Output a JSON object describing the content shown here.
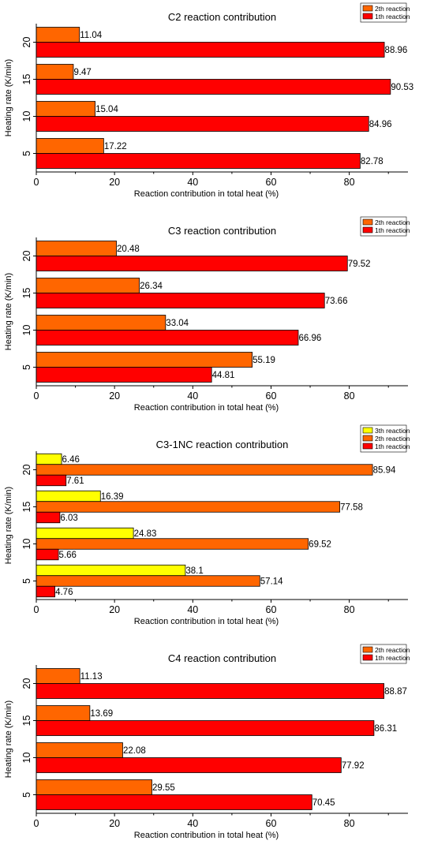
{
  "colors": {
    "1th reaction": "#ff0000",
    "2th reaction": "#ff6600",
    "3th reaction": "#ffff00",
    "bar_border": "#000000",
    "axis": "#000000"
  },
  "chart_data": [
    {
      "type": "bar",
      "orientation": "horizontal",
      "title": "C2 reaction contribution",
      "xlabel": "Reaction contribution in total heat (%)",
      "ylabel": "Heating rate (K/min)",
      "xlim": [
        0,
        95
      ],
      "xticks": [
        0,
        20,
        40,
        60,
        80
      ],
      "categories": [
        "5",
        "10",
        "15",
        "20"
      ],
      "legend_position": "top-right",
      "legend_order": [
        "2th reaction",
        "1th reaction"
      ],
      "series": [
        {
          "name": "1th reaction",
          "values": [
            82.78,
            84.96,
            90.53,
            88.96
          ]
        },
        {
          "name": "2th reaction",
          "values": [
            17.22,
            15.04,
            9.47,
            11.04
          ]
        }
      ]
    },
    {
      "type": "bar",
      "orientation": "horizontal",
      "title": "C3 reaction contribution",
      "xlabel": "Reaction contribution in total heat (%)",
      "ylabel": "Heating rate (K/min)",
      "xlim": [
        0,
        95
      ],
      "xticks": [
        0,
        20,
        40,
        60,
        80
      ],
      "categories": [
        "5",
        "10",
        "15",
        "20"
      ],
      "legend_position": "top-right",
      "legend_order": [
        "2th reaction",
        "1th reaction"
      ],
      "series": [
        {
          "name": "1th reaction",
          "values": [
            44.81,
            66.96,
            73.66,
            79.52
          ]
        },
        {
          "name": "2th reaction",
          "values": [
            55.19,
            33.04,
            26.34,
            20.48
          ]
        }
      ]
    },
    {
      "type": "bar",
      "orientation": "horizontal",
      "title": "C3-1NC reaction contribution",
      "xlabel": "Reaction contribution in total heat (%)",
      "ylabel": "Heating rate (K/min)",
      "xlim": [
        0,
        95
      ],
      "xticks": [
        0,
        20,
        40,
        60,
        80
      ],
      "categories": [
        "5",
        "10",
        "15",
        "20"
      ],
      "legend_position": "top-right",
      "legend_order": [
        "3th reaction",
        "2th reaction",
        "1th reaction"
      ],
      "series": [
        {
          "name": "1th reaction",
          "values": [
            4.76,
            5.66,
            6.03,
            7.61
          ]
        },
        {
          "name": "2th reaction",
          "values": [
            57.14,
            69.52,
            77.58,
            85.94
          ]
        },
        {
          "name": "3th reaction",
          "values": [
            38.1,
            24.83,
            16.39,
            6.46
          ]
        }
      ]
    },
    {
      "type": "bar",
      "orientation": "horizontal",
      "title": "C4 reaction contribution",
      "xlabel": "Reaction contribution in total heat (%)",
      "ylabel": "Heating rate (K/min)",
      "xlim": [
        0,
        95
      ],
      "xticks": [
        0,
        20,
        40,
        60,
        80
      ],
      "categories": [
        "5",
        "10",
        "15",
        "20"
      ],
      "legend_position": "top-right",
      "legend_order": [
        "2th reaction",
        "1th reaction"
      ],
      "series": [
        {
          "name": "1th reaction",
          "values": [
            70.45,
            77.92,
            86.31,
            88.87
          ]
        },
        {
          "name": "2th reaction",
          "values": [
            29.55,
            22.08,
            13.69,
            11.13
          ]
        }
      ]
    }
  ]
}
